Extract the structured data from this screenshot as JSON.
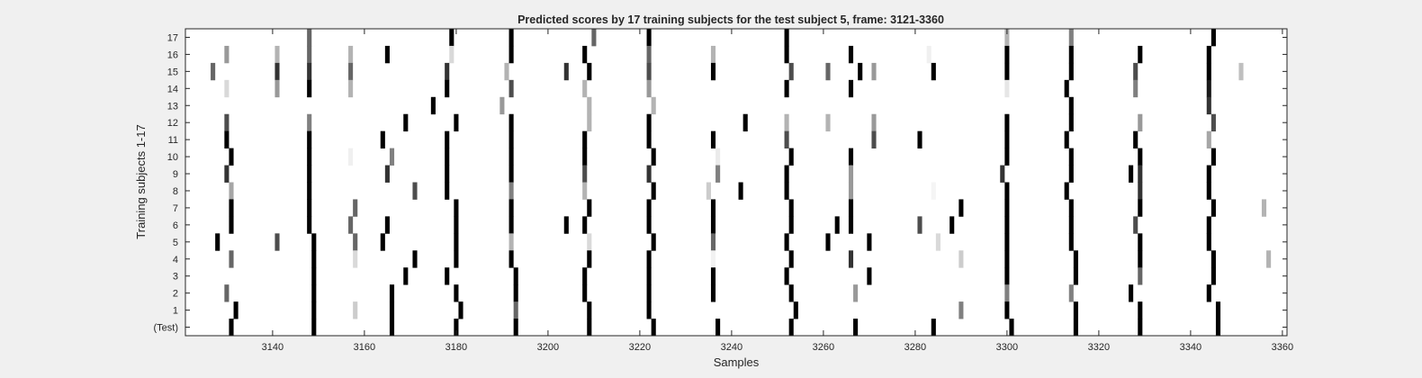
{
  "chart_data": {
    "type": "heatmap",
    "title": "Predicted scores by 17 training subjects for the test subject 5, frame: 3121-3360",
    "xlabel": "Samples",
    "ylabel": "Training subjects 1-17",
    "xlim": [
      3121,
      3360
    ],
    "x_ticks": [
      3140,
      3160,
      3180,
      3200,
      3220,
      3240,
      3260,
      3280,
      3300,
      3320,
      3340,
      3360
    ],
    "row_labels": [
      "17",
      "16",
      "15",
      "14",
      "13",
      "12",
      "11",
      "10",
      "9",
      "8",
      "7",
      "6",
      "5",
      "4",
      "3",
      "2",
      "1",
      "(Test)"
    ],
    "colormap": "gray-inverted (white = 0, black = 1)",
    "grid": false,
    "background_color": "#ffffff",
    "figure_color": "#f0f0f0",
    "rows": [
      {
        "label": "17",
        "marks": [
          [
            3148,
            0.6
          ],
          [
            3179,
            1
          ],
          [
            3192,
            1
          ],
          [
            3210,
            0.6
          ],
          [
            3222,
            1
          ],
          [
            3252,
            1
          ],
          [
            3300,
            0.3
          ],
          [
            3314,
            0.5
          ],
          [
            3345,
            1
          ]
        ]
      },
      {
        "label": "16",
        "marks": [
          [
            3130,
            0.4
          ],
          [
            3141,
            0.3
          ],
          [
            3148,
            0.6
          ],
          [
            3157,
            0.3
          ],
          [
            3165,
            1
          ],
          [
            3179,
            0.15
          ],
          [
            3192,
            1
          ],
          [
            3208,
            1
          ],
          [
            3222,
            0.6
          ],
          [
            3236,
            0.3
          ],
          [
            3252,
            1
          ],
          [
            3266,
            1
          ],
          [
            3283,
            0.06
          ],
          [
            3300,
            1
          ],
          [
            3314,
            1
          ],
          [
            3329,
            1
          ],
          [
            3344,
            1
          ]
        ]
      },
      {
        "label": "15",
        "marks": [
          [
            3127,
            0.6
          ],
          [
            3141,
            0.8
          ],
          [
            3148,
            0.8
          ],
          [
            3157,
            0.6
          ],
          [
            3178,
            0.8
          ],
          [
            3191,
            0.3
          ],
          [
            3204,
            0.8
          ],
          [
            3209,
            1
          ],
          [
            3222,
            0.7
          ],
          [
            3236,
            1
          ],
          [
            3253,
            0.7
          ],
          [
            3261,
            0.6
          ],
          [
            3268,
            1
          ],
          [
            3271,
            0.4
          ],
          [
            3284,
            1
          ],
          [
            3300,
            1
          ],
          [
            3314,
            1
          ],
          [
            3328,
            0.7
          ],
          [
            3344,
            1
          ],
          [
            3351,
            0.25
          ]
        ]
      },
      {
        "label": "14",
        "marks": [
          [
            3130,
            0.15
          ],
          [
            3141,
            0.4
          ],
          [
            3148,
            1
          ],
          [
            3157,
            0.3
          ],
          [
            3178,
            1
          ],
          [
            3192,
            0.7
          ],
          [
            3208,
            0.3
          ],
          [
            3222,
            0.4
          ],
          [
            3252,
            1
          ],
          [
            3266,
            1
          ],
          [
            3300,
            0.1
          ],
          [
            3313,
            1
          ],
          [
            3328,
            0.5
          ],
          [
            3344,
            0.9
          ]
        ]
      },
      {
        "label": "13",
        "marks": [
          [
            3175,
            1
          ],
          [
            3190,
            0.4
          ],
          [
            3209,
            0.3
          ],
          [
            3223,
            0.3
          ],
          [
            3314,
            1
          ],
          [
            3344,
            0.8
          ]
        ]
      },
      {
        "label": "12",
        "marks": [
          [
            3130,
            0.7
          ],
          [
            3148,
            0.5
          ],
          [
            3169,
            1
          ],
          [
            3180,
            1
          ],
          [
            3192,
            1
          ],
          [
            3209,
            0.3
          ],
          [
            3222,
            1
          ],
          [
            3243,
            1
          ],
          [
            3252,
            0.3
          ],
          [
            3261,
            0.3
          ],
          [
            3271,
            0.4
          ],
          [
            3300,
            1
          ],
          [
            3314,
            1
          ],
          [
            3329,
            0.4
          ],
          [
            3345,
            0.7
          ]
        ]
      },
      {
        "label": "11",
        "marks": [
          [
            3130,
            1
          ],
          [
            3148,
            1
          ],
          [
            3164,
            1
          ],
          [
            3178,
            1
          ],
          [
            3192,
            1
          ],
          [
            3208,
            1
          ],
          [
            3222,
            1
          ],
          [
            3236,
            1
          ],
          [
            3252,
            0.7
          ],
          [
            3271,
            0.7
          ],
          [
            3281,
            1
          ],
          [
            3300,
            1
          ],
          [
            3313,
            1
          ],
          [
            3328,
            1
          ],
          [
            3344,
            0.35
          ]
        ]
      },
      {
        "label": "10",
        "marks": [
          [
            3131,
            1
          ],
          [
            3148,
            1
          ],
          [
            3157,
            0.06
          ],
          [
            3166,
            0.5
          ],
          [
            3178,
            1
          ],
          [
            3192,
            1
          ],
          [
            3208,
            1
          ],
          [
            3223,
            1
          ],
          [
            3237,
            0.08
          ],
          [
            3253,
            1
          ],
          [
            3266,
            1
          ],
          [
            3300,
            1
          ],
          [
            3314,
            1
          ],
          [
            3329,
            1
          ],
          [
            3345,
            1
          ]
        ]
      },
      {
        "label": "9",
        "marks": [
          [
            3130,
            0.8
          ],
          [
            3148,
            1
          ],
          [
            3165,
            0.8
          ],
          [
            3178,
            1
          ],
          [
            3192,
            1
          ],
          [
            3208,
            0.7
          ],
          [
            3222,
            0.8
          ],
          [
            3237,
            0.5
          ],
          [
            3252,
            1
          ],
          [
            3266,
            0.4
          ],
          [
            3299,
            0.8
          ],
          [
            3314,
            1
          ],
          [
            3327,
            1
          ],
          [
            3329,
            0.8
          ],
          [
            3344,
            1
          ]
        ]
      },
      {
        "label": "8",
        "marks": [
          [
            3131,
            0.35
          ],
          [
            3148,
            1
          ],
          [
            3171,
            0.7
          ],
          [
            3178,
            1
          ],
          [
            3192,
            0.5
          ],
          [
            3208,
            0.3
          ],
          [
            3223,
            1
          ],
          [
            3235,
            0.2
          ],
          [
            3242,
            1
          ],
          [
            3252,
            1
          ],
          [
            3266,
            0.4
          ],
          [
            3284,
            0.04
          ],
          [
            3300,
            1
          ],
          [
            3313,
            1
          ],
          [
            3329,
            0.8
          ],
          [
            3344,
            1
          ]
        ]
      },
      {
        "label": "7",
        "marks": [
          [
            3131,
            1
          ],
          [
            3148,
            1
          ],
          [
            3158,
            0.6
          ],
          [
            3180,
            1
          ],
          [
            3192,
            1
          ],
          [
            3209,
            1
          ],
          [
            3222,
            1
          ],
          [
            3236,
            1
          ],
          [
            3253,
            1
          ],
          [
            3266,
            1
          ],
          [
            3290,
            1
          ],
          [
            3300,
            1
          ],
          [
            3314,
            1
          ],
          [
            3329,
            1
          ],
          [
            3345,
            1
          ],
          [
            3356,
            0.3
          ]
        ]
      },
      {
        "label": "6",
        "marks": [
          [
            3131,
            1
          ],
          [
            3148,
            1
          ],
          [
            3157,
            0.6
          ],
          [
            3165,
            1
          ],
          [
            3180,
            1
          ],
          [
            3192,
            1
          ],
          [
            3204,
            1
          ],
          [
            3208,
            1
          ],
          [
            3222,
            1
          ],
          [
            3236,
            1
          ],
          [
            3253,
            1
          ],
          [
            3263,
            1
          ],
          [
            3266,
            1
          ],
          [
            3281,
            0.7
          ],
          [
            3288,
            1
          ],
          [
            3300,
            1
          ],
          [
            3314,
            1
          ],
          [
            3328,
            0.7
          ],
          [
            3344,
            1
          ]
        ]
      },
      {
        "label": "5",
        "marks": [
          [
            3128,
            1
          ],
          [
            3141,
            0.7
          ],
          [
            3149,
            1
          ],
          [
            3158,
            0.6
          ],
          [
            3164,
            1
          ],
          [
            3180,
            1
          ],
          [
            3192,
            0.3
          ],
          [
            3209,
            0.15
          ],
          [
            3223,
            1
          ],
          [
            3236,
            0.6
          ],
          [
            3252,
            1
          ],
          [
            3261,
            1
          ],
          [
            3270,
            1
          ],
          [
            3285,
            0.15
          ],
          [
            3300,
            1
          ],
          [
            3314,
            1
          ],
          [
            3329,
            1
          ],
          [
            3344,
            1
          ]
        ]
      },
      {
        "label": "4",
        "marks": [
          [
            3131,
            0.6
          ],
          [
            3149,
            1
          ],
          [
            3158,
            0.15
          ],
          [
            3171,
            1
          ],
          [
            3180,
            1
          ],
          [
            3192,
            1
          ],
          [
            3209,
            1
          ],
          [
            3222,
            1
          ],
          [
            3236,
            0.05
          ],
          [
            3253,
            1
          ],
          [
            3266,
            0.8
          ],
          [
            3290,
            0.2
          ],
          [
            3300,
            1
          ],
          [
            3315,
            1
          ],
          [
            3329,
            1
          ],
          [
            3345,
            1
          ],
          [
            3357,
            0.3
          ]
        ]
      },
      {
        "label": "3",
        "marks": [
          [
            3149,
            1
          ],
          [
            3169,
            1
          ],
          [
            3178,
            1
          ],
          [
            3193,
            1
          ],
          [
            3208,
            1
          ],
          [
            3222,
            1
          ],
          [
            3236,
            1
          ],
          [
            3252,
            1
          ],
          [
            3270,
            1
          ],
          [
            3300,
            1
          ],
          [
            3315,
            1
          ],
          [
            3329,
            0.6
          ],
          [
            3345,
            1
          ]
        ]
      },
      {
        "label": "2",
        "marks": [
          [
            3130,
            0.6
          ],
          [
            3149,
            1
          ],
          [
            3166,
            1
          ],
          [
            3180,
            1
          ],
          [
            3193,
            1
          ],
          [
            3208,
            1
          ],
          [
            3222,
            1
          ],
          [
            3236,
            1
          ],
          [
            3253,
            1
          ],
          [
            3267,
            0.4
          ],
          [
            3300,
            0.5
          ],
          [
            3314,
            0.5
          ],
          [
            3327,
            1
          ],
          [
            3344,
            1
          ]
        ]
      },
      {
        "label": "1",
        "marks": [
          [
            3132,
            1
          ],
          [
            3149,
            1
          ],
          [
            3158,
            0.2
          ],
          [
            3166,
            1
          ],
          [
            3181,
            1
          ],
          [
            3193,
            0.6
          ],
          [
            3209,
            1
          ],
          [
            3222,
            1
          ],
          [
            3254,
            1
          ],
          [
            3290,
            0.5
          ],
          [
            3300,
            1
          ],
          [
            3315,
            1
          ],
          [
            3329,
            1
          ],
          [
            3346,
            1
          ]
        ]
      },
      {
        "label": "(Test)",
        "marks": [
          [
            3131,
            1
          ],
          [
            3149,
            1
          ],
          [
            3166,
            1
          ],
          [
            3180,
            1
          ],
          [
            3193,
            1
          ],
          [
            3209,
            1
          ],
          [
            3223,
            1
          ],
          [
            3237,
            1
          ],
          [
            3253,
            1
          ],
          [
            3267,
            1
          ],
          [
            3284,
            1
          ],
          [
            3301,
            1
          ],
          [
            3315,
            1
          ],
          [
            3329,
            1
          ],
          [
            3346,
            1
          ]
        ]
      }
    ]
  }
}
